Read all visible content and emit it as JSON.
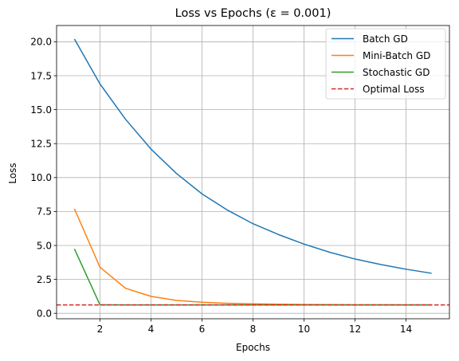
{
  "chart_data": {
    "type": "line",
    "title": "Loss vs Epochs (ε = 0.001)",
    "xlabel": "Epochs",
    "ylabel": "Loss",
    "xlim": [
      0.3,
      15.7
    ],
    "ylim": [
      -0.4,
      21.2
    ],
    "xticks": [
      2,
      4,
      6,
      8,
      10,
      12,
      14
    ],
    "xtick_labels": [
      "2",
      "4",
      "6",
      "8",
      "10",
      "12",
      "14"
    ],
    "yticks": [
      0,
      2.5,
      5,
      7.5,
      10,
      12.5,
      15,
      17.5,
      20
    ],
    "ytick_labels": [
      "0.0",
      "2.5",
      "5.0",
      "7.5",
      "10.0",
      "12.5",
      "15.0",
      "17.5",
      "20.0"
    ],
    "grid": true,
    "legend_position": "top-right",
    "x": [
      1,
      2,
      3,
      4,
      5,
      6,
      7,
      8,
      9,
      10,
      11,
      12,
      13,
      14,
      15
    ],
    "series": [
      {
        "name": "Batch GD",
        "color": "#1f77b4",
        "style": "solid",
        "values": [
          20.2,
          16.9,
          14.3,
          12.1,
          10.3,
          8.8,
          7.6,
          6.6,
          5.8,
          5.1,
          4.5,
          4.0,
          3.6,
          3.25,
          2.95
        ]
      },
      {
        "name": "Mini-Batch GD",
        "color": "#ff7f0e",
        "style": "solid",
        "values": [
          7.7,
          3.4,
          1.85,
          1.25,
          0.95,
          0.82,
          0.74,
          0.7,
          0.67,
          0.65,
          0.64,
          0.63,
          0.63,
          0.62,
          0.62
        ]
      },
      {
        "name": "Stochastic GD",
        "color": "#2ca02c",
        "style": "solid",
        "values": [
          4.75,
          0.63,
          0.62,
          0.62,
          0.62,
          0.62,
          0.62,
          0.62,
          0.62,
          0.62,
          0.62,
          0.62,
          0.62,
          0.62,
          0.62
        ]
      },
      {
        "name": "Optimal Loss",
        "color": "#d62728",
        "style": "dashed",
        "hline": 0.62
      }
    ]
  }
}
